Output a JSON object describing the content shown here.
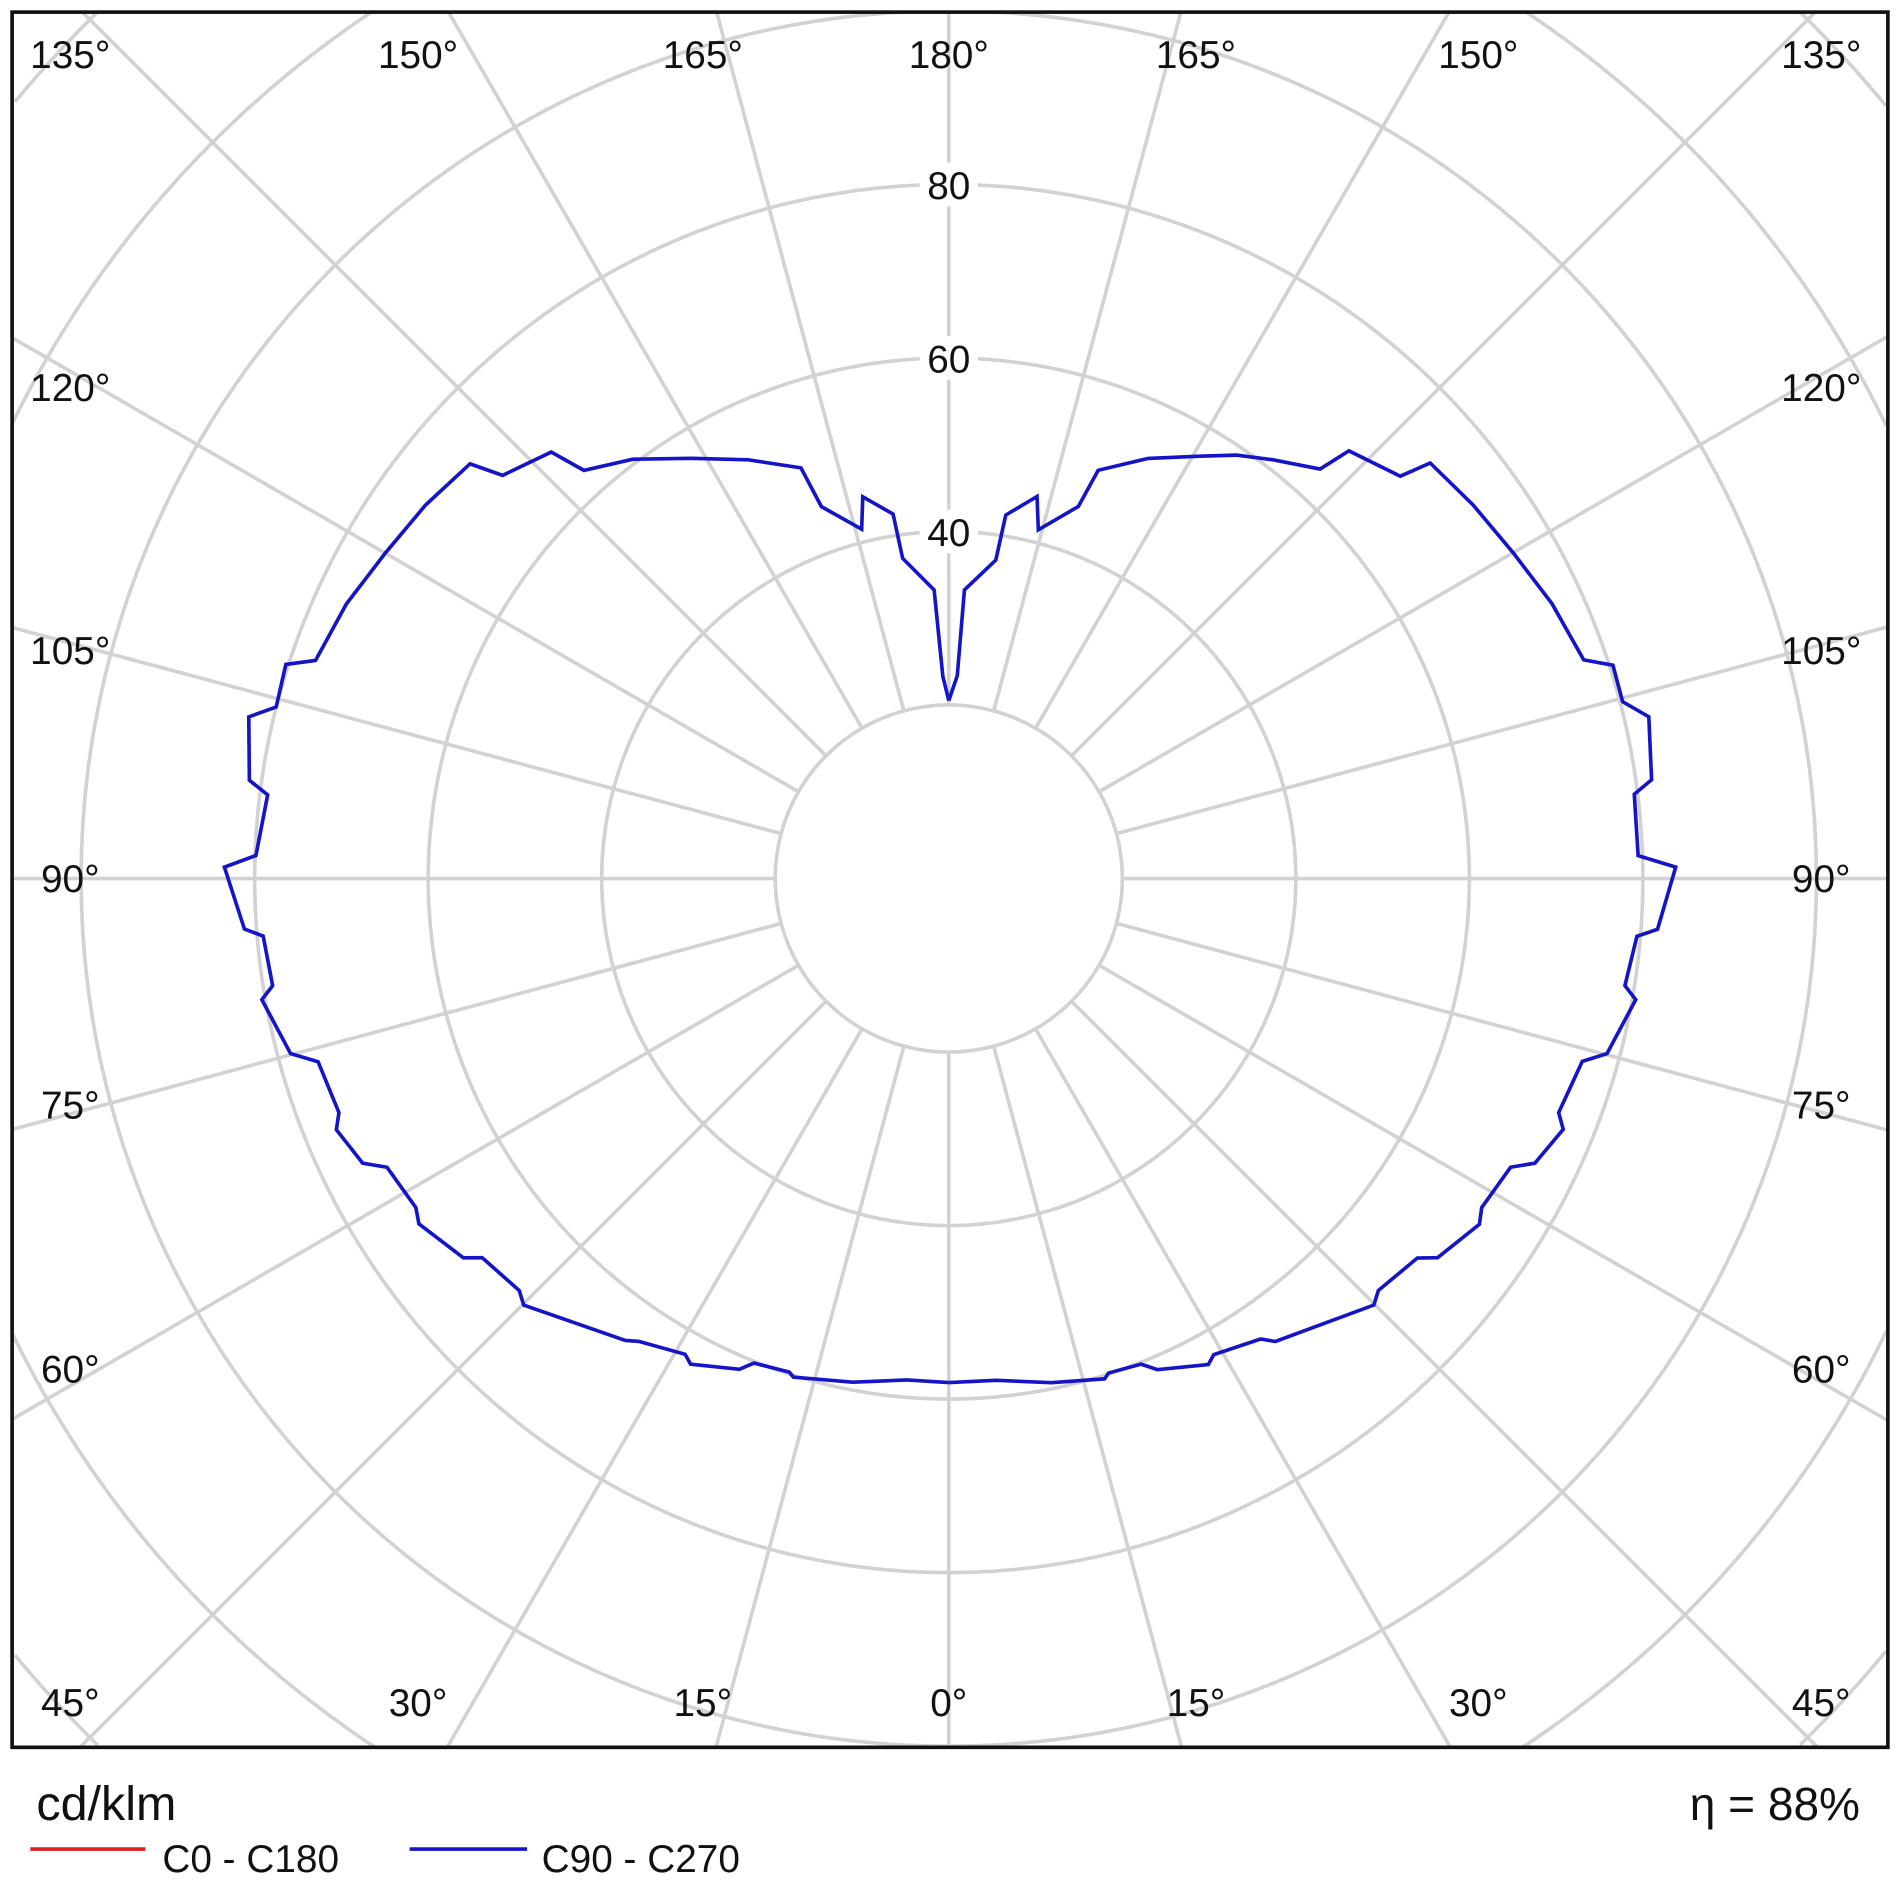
{
  "chart_data": {
    "type": "polar-line",
    "unit": "cd/klm",
    "efficiency_label": "η = 88%",
    "radial_ticks": [
      20,
      40,
      60,
      80,
      100,
      120,
      140
    ],
    "radial_tick_labels": [
      "40",
      "60",
      "80"
    ],
    "angle_labels": {
      "top": [
        "135°",
        "150°",
        "165°",
        "180°",
        "165°",
        "150°",
        "135°"
      ],
      "left": [
        "120°",
        "105°",
        "90°",
        "75°",
        "60°"
      ],
      "right": [
        "120°",
        "105°",
        "90°",
        "75°",
        "60°"
      ],
      "bottom": [
        "45°",
        "30°",
        "15°",
        "0°",
        "15°",
        "30°",
        "45°"
      ]
    },
    "grid": true,
    "legend_position": "bottom-left",
    "legend": [
      {
        "name": "C0 - C180",
        "color": "#e0201c"
      },
      {
        "name": "C90 - C270",
        "color": "#1414c8"
      }
    ],
    "series": [
      {
        "name": "C90 - C270",
        "color": "#1414c8",
        "half": "C90",
        "gamma": [
          0,
          5.4,
          11.5,
          17.3,
          17.9,
          21.6,
          23.0,
          28.1,
          29.1,
          34.1,
          35.2,
          44.9,
          46.2,
          51.0,
          52.2,
          56.9,
          58.3,
          62.8,
          64.1,
          67.8,
          69.0,
          73.9,
          75.1,
          80.0,
          81.0,
          85.2,
          85.9,
          90.9,
          91.9,
          97.0,
          98.0,
          103.0,
          104.7,
          107.8,
          109.0,
          114.5,
          120.0,
          125.5,
          130.8,
          131.7,
          136.9,
          137.8,
          142.3,
          145.8,
          149.3,
          154.6,
          159.9,
          160.8,
          165.6,
          167.0,
          171.1,
          171.6,
          176.9,
          177.6,
          180
        ],
        "values": [
          58.1,
          58.1,
          59.3,
          60.4,
          59.9,
          60.2,
          61.5,
          63.5,
          62.8,
          64.1,
          65.3,
          69.4,
          68.6,
          69.5,
          71.3,
          73.0,
          72.2,
          72.8,
          75.1,
          76.5,
          75.3,
          76.0,
          78.5,
          80.4,
          78.9,
          79.6,
          81.9,
          83.8,
          79.5,
          79.6,
          81.8,
          82.8,
          80.3,
          80.4,
          77.4,
          76.4,
          75.1,
          74.2,
          73.3,
          69.7,
          67.5,
          63.7,
          61.0,
          59.0,
          56.6,
          53.6,
          50.1,
          45.4,
          41.5,
          45.2,
          42.4,
          37.1,
          33.3,
          23.4,
          20.5
        ]
      },
      {
        "name": "C90 - C270",
        "color": "#1414c8",
        "half": "C270",
        "gamma": [
          0,
          4.8,
          10.8,
          17.3,
          17.9,
          21.9,
          23.1,
          28.0,
          29.0,
          33.8,
          35.0,
          44.9,
          46.2,
          50.9,
          52.0,
          56.9,
          58.3,
          62.8,
          64.1,
          67.7,
          69.0,
          73.8,
          75.1,
          80.0,
          81.0,
          85.2,
          85.9,
          90.9,
          91.9,
          97.0,
          98.0,
          103.0,
          104.3,
          107.9,
          109.0,
          114.5,
          120.0,
          125.5,
          130.9,
          132.1,
          137.0,
          138.2,
          143.0,
          148.5,
          154.4,
          160.2,
          161.1,
          166.0,
          167.3,
          171.3,
          171.8,
          177.1,
          178.3,
          180
        ],
        "values": [
          58.1,
          58.0,
          59.1,
          60.2,
          59.8,
          60.2,
          61.5,
          63.4,
          62.7,
          64.2,
          65.0,
          69.4,
          68.6,
          69.3,
          71.0,
          72.9,
          72.2,
          72.8,
          75.1,
          76.3,
          75.3,
          75.7,
          78.5,
          80.4,
          78.9,
          79.3,
          81.4,
          83.5,
          79.9,
          79.1,
          81.4,
          82.8,
          80.0,
          80.3,
          77.2,
          76.3,
          75.0,
          74.1,
          73.0,
          69.3,
          67.2,
          63.1,
          60.5,
          56.8,
          53.5,
          50.3,
          45.3,
          41.5,
          45.1,
          42.5,
          37.3,
          33.3,
          23.3,
          20.5
        ]
      }
    ]
  }
}
